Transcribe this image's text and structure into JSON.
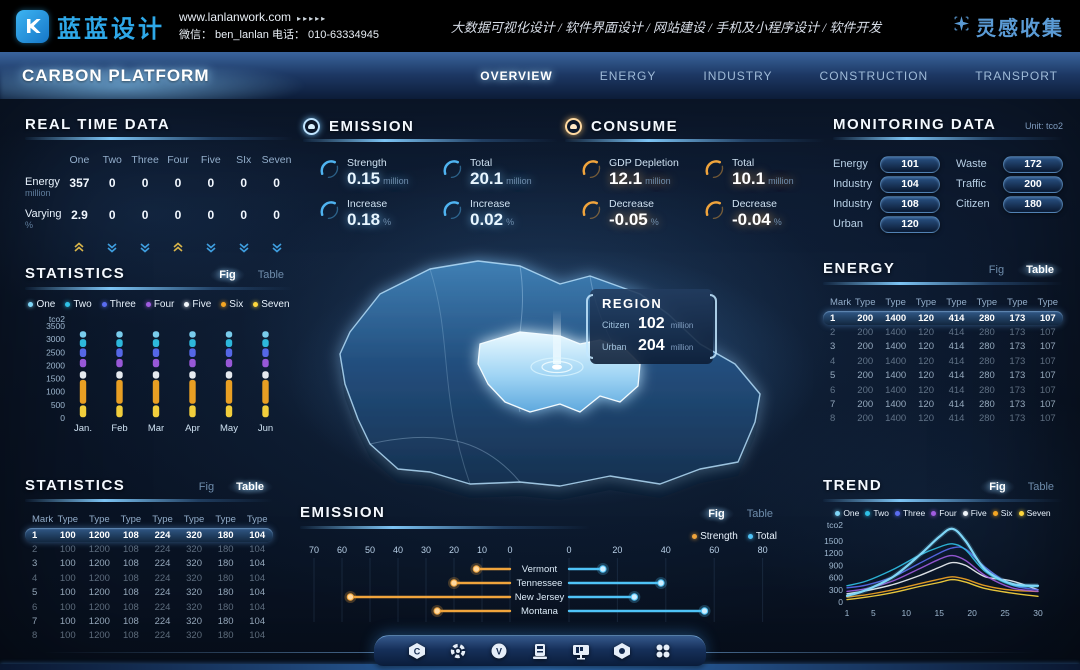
{
  "header": {
    "logo_text": "蓝蓝设计",
    "website": "www.lanlanwork.com",
    "website_arrows": "▸▸▸▸▸",
    "contact_line": "微信： ben_lanlan    电话： 010-63334945",
    "services": "大数据可视化设计 / 软件界面设计 / 网站建设 / 手机及小程序设计 / 软件开发",
    "collect_brand": "灵感收集"
  },
  "nav": {
    "title": "CARBON PLATFORM",
    "tabs": [
      {
        "label": "OVERVIEW",
        "active": true
      },
      {
        "label": "ENERGY",
        "active": false
      },
      {
        "label": "INDUSTRY",
        "active": false
      },
      {
        "label": "CONSTRUCTION",
        "active": false
      },
      {
        "label": "TRANSPORT",
        "active": false
      }
    ]
  },
  "ui": {
    "fig_label": "Fig",
    "table_label": "Table"
  },
  "realtime": {
    "title": "REAL TIME DATA",
    "columns": [
      "One",
      "Two",
      "Three",
      "Four",
      "Five",
      "SIx",
      "Seven"
    ],
    "rows": [
      {
        "label": "Energy",
        "unit": "million",
        "values": [
          "357",
          "0",
          "0",
          "0",
          "0",
          "0",
          "0"
        ]
      },
      {
        "label": "Varying",
        "unit": "%",
        "values": [
          "2.9",
          "0",
          "0",
          "0",
          "0",
          "0",
          "0"
        ]
      }
    ],
    "trends": [
      "up",
      "down",
      "down",
      "up",
      "down",
      "down",
      "down"
    ],
    "trend_colors": {
      "up": "#d9b54a",
      "down": "#3f9fe0"
    }
  },
  "emission_stats": {
    "title": "EMISSION",
    "accent": "#4fb3f0",
    "items": [
      {
        "label": "Strength",
        "value": "0.15",
        "unit": "million"
      },
      {
        "label": "Total",
        "value": "20.1",
        "unit": "million"
      },
      {
        "label": "Increase",
        "value": "0.18",
        "unit": "%"
      },
      {
        "label": "Increase",
        "value": "0.02",
        "unit": "%"
      }
    ]
  },
  "consume_stats": {
    "title": "CONSUME",
    "accent": "#f0a43c",
    "items": [
      {
        "label": "GDP Depletion",
        "value": "12.1",
        "unit": "million"
      },
      {
        "label": "Total",
        "value": "10.1",
        "unit": "million"
      },
      {
        "label": "Decrease",
        "value": "-0.05",
        "unit": "%"
      },
      {
        "label": "Decrease",
        "value": "-0.04",
        "unit": "%"
      }
    ]
  },
  "monitoring": {
    "title": "MONITORING DATA",
    "unit": "Unit: tco2",
    "left": [
      {
        "label": "Energy",
        "value": "101"
      },
      {
        "label": "Industry",
        "value": "104"
      },
      {
        "label": "Industry",
        "value": "108"
      },
      {
        "label": "Urban",
        "value": "120"
      }
    ],
    "right": [
      {
        "label": "Waste",
        "value": "172"
      },
      {
        "label": "Traffic",
        "value": "200"
      },
      {
        "label": "Citizen",
        "value": "180"
      }
    ]
  },
  "region_tooltip": {
    "title": "REGION",
    "rows": [
      {
        "label": "Citizen",
        "value": "102",
        "unit": "million"
      },
      {
        "label": "Urban",
        "value": "204",
        "unit": "million"
      }
    ]
  },
  "stats_fig": {
    "title": "STATISTICS",
    "active_toggle": "fig"
  },
  "energy_table": {
    "title": "ENERGY",
    "active_toggle": "table",
    "columns": [
      "Mark",
      "Type",
      "Type",
      "Type",
      "Type",
      "Type",
      "Type",
      "Type"
    ],
    "rows": [
      [
        "1",
        "200",
        "1400",
        "120",
        "414",
        "280",
        "173",
        "107"
      ],
      [
        "2",
        "200",
        "1400",
        "120",
        "414",
        "280",
        "173",
        "107"
      ],
      [
        "3",
        "200",
        "1400",
        "120",
        "414",
        "280",
        "173",
        "107"
      ],
      [
        "4",
        "200",
        "1400",
        "120",
        "414",
        "280",
        "173",
        "107"
      ],
      [
        "5",
        "200",
        "1400",
        "120",
        "414",
        "280",
        "173",
        "107"
      ],
      [
        "6",
        "200",
        "1400",
        "120",
        "414",
        "280",
        "173",
        "107"
      ],
      [
        "7",
        "200",
        "1400",
        "120",
        "414",
        "280",
        "173",
        "107"
      ],
      [
        "8",
        "200",
        "1400",
        "120",
        "414",
        "280",
        "173",
        "107"
      ]
    ]
  },
  "stats_table": {
    "title": "STATISTICS",
    "active_toggle": "table",
    "columns": [
      "Mark",
      "Type",
      "Type",
      "Type",
      "Type",
      "Type",
      "Type",
      "Type"
    ],
    "rows": [
      [
        "1",
        "100",
        "1200",
        "108",
        "224",
        "320",
        "180",
        "104"
      ],
      [
        "2",
        "100",
        "1200",
        "108",
        "224",
        "320",
        "180",
        "104"
      ],
      [
        "3",
        "100",
        "1200",
        "108",
        "224",
        "320",
        "180",
        "104"
      ],
      [
        "4",
        "100",
        "1200",
        "108",
        "224",
        "320",
        "180",
        "104"
      ],
      [
        "5",
        "100",
        "1200",
        "108",
        "224",
        "320",
        "180",
        "104"
      ],
      [
        "6",
        "100",
        "1200",
        "108",
        "224",
        "320",
        "180",
        "104"
      ],
      [
        "7",
        "100",
        "1200",
        "108",
        "224",
        "320",
        "180",
        "104"
      ],
      [
        "8",
        "100",
        "1200",
        "108",
        "224",
        "320",
        "180",
        "104"
      ]
    ]
  },
  "emission_chart": {
    "title": "EMISSION",
    "active_toggle": "fig"
  },
  "trend": {
    "title": "TREND",
    "active_toggle": "fig"
  },
  "series_colors": {
    "One": "#7fd6f7",
    "Two": "#2fc1e6",
    "Three": "#5a6cf0",
    "Four": "#a05ce0",
    "Five": "#f2f6fa",
    "Six": "#f5a623",
    "Seven": "#ffd83d"
  },
  "dock": {
    "icons": [
      "hexagon-c-icon",
      "gear-icon",
      "v-badge-icon",
      "charging-station-icon",
      "billboard-icon",
      "nut-icon",
      "apps-grid-icon"
    ]
  },
  "chart_data": [
    {
      "id": "statistics_stack",
      "type": "bar",
      "title": "STATISTICS",
      "ylabel": "tco2",
      "ylim": [
        0,
        3500
      ],
      "yticks": [
        0,
        500,
        1000,
        1500,
        2000,
        2500,
        3000,
        3500
      ],
      "categories": [
        "Jan.",
        "Feb",
        "Mar",
        "Apr",
        "May",
        "Jun"
      ],
      "legend": [
        "One",
        "Two",
        "Three",
        "Four",
        "Five",
        "Six",
        "Seven"
      ],
      "legend_position": "top",
      "grid": false,
      "stack_segments": [
        {
          "series": "Seven",
          "from": 30,
          "to": 480
        },
        {
          "series": "Six",
          "from": 540,
          "to": 1450
        },
        {
          "series": "Five",
          "from": 1500,
          "to": 1780
        },
        {
          "series": "Four",
          "from": 1930,
          "to": 2250
        },
        {
          "series": "Three",
          "from": 2320,
          "to": 2650
        },
        {
          "series": "Two",
          "from": 2700,
          "to": 3000
        },
        {
          "series": "One",
          "from": 3060,
          "to": 3300
        }
      ],
      "note": "identical stacked column repeated for all six months"
    },
    {
      "id": "emission_tornado",
      "type": "bar",
      "orientation": "horizontal-diverging",
      "title": "EMISSION",
      "categories": [
        "Vermont",
        "Tennessee",
        "New Jersey",
        "Montana"
      ],
      "series": [
        {
          "name": "Strength",
          "color": "#f0a43c",
          "side": "left",
          "values": [
            12,
            20,
            57,
            26
          ]
        },
        {
          "name": "Total",
          "color": "#4fc3f7",
          "side": "right",
          "values": [
            14,
            38,
            27,
            56
          ]
        }
      ],
      "left_axis_ticks": [
        70,
        60,
        50,
        40,
        30,
        20,
        10,
        0
      ],
      "right_axis_ticks": [
        0,
        20,
        40,
        60,
        80
      ],
      "legend_position": "top-right",
      "grid": true
    },
    {
      "id": "trend_lines",
      "type": "line",
      "title": "TREND",
      "ylabel": "tco2",
      "ylim": [
        0,
        1800
      ],
      "yticks": [
        0,
        300,
        600,
        900,
        1200,
        1500
      ],
      "xticks": [
        1,
        5,
        10,
        15,
        20,
        25,
        30
      ],
      "x": [
        1,
        4,
        8,
        12,
        15,
        17,
        19,
        22,
        26,
        30
      ],
      "legend_position": "top",
      "grid": false,
      "series": [
        {
          "name": "One",
          "values": [
            150,
            300,
            620,
            1150,
            1600,
            1800,
            1500,
            800,
            450,
            400
          ]
        },
        {
          "name": "Two",
          "values": [
            400,
            520,
            800,
            1150,
            1350,
            1430,
            1280,
            750,
            420,
            380
          ]
        },
        {
          "name": "Three",
          "values": [
            350,
            420,
            620,
            950,
            1200,
            1330,
            1300,
            850,
            420,
            300
          ]
        },
        {
          "name": "Four",
          "values": [
            260,
            330,
            520,
            820,
            1050,
            1140,
            1020,
            650,
            350,
            260
          ]
        },
        {
          "name": "Five",
          "values": [
            200,
            280,
            430,
            650,
            850,
            970,
            900,
            620,
            520,
            300
          ]
        },
        {
          "name": "Six",
          "values": [
            120,
            180,
            300,
            450,
            560,
            620,
            560,
            400,
            290,
            260
          ]
        },
        {
          "name": "Seven",
          "values": [
            60,
            120,
            230,
            380,
            480,
            550,
            490,
            330,
            220,
            140
          ]
        }
      ]
    }
  ]
}
